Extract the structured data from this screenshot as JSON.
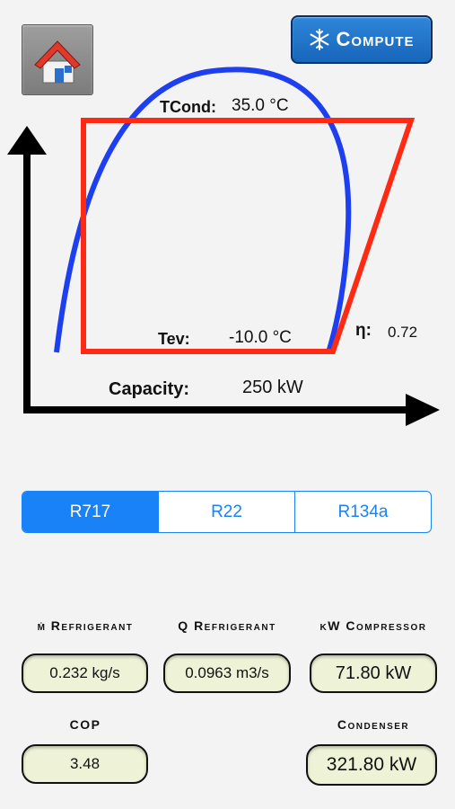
{
  "toolbar": {
    "compute_label": "Compute"
  },
  "diagram": {
    "tcond_label": "TCond:",
    "tcond_value": "35.0 °C",
    "tev_label": "Tev:",
    "tev_value": "-10.0 °C",
    "eta_label": "η:",
    "eta_value": "0.72",
    "capacity_label": "Capacity:",
    "capacity_value": "250 kW"
  },
  "refrigerants": {
    "tabs": [
      "R717",
      "R22",
      "R134a"
    ],
    "selected": "R717"
  },
  "results": {
    "m_refrigerant": {
      "label": "ṁ Refrigerant",
      "value": "0.232 kg/s"
    },
    "q_refrigerant": {
      "label": "Q Refrigerant",
      "value": "0.0963 m3/s"
    },
    "kw_compressor": {
      "label": "kW Compressor",
      "value": "71.80 kW"
    },
    "cop": {
      "label": "COP",
      "value": "3.48"
    },
    "condenser": {
      "label": "Condenser",
      "value": "321.80 kW"
    }
  },
  "colors": {
    "accent": "#1a82f7",
    "saturation_curve": "#1e3ff0",
    "cycle": "#ff2a14",
    "value_field": "#eef3d8"
  },
  "icons": [
    "home-icon",
    "snowflake-icon"
  ]
}
